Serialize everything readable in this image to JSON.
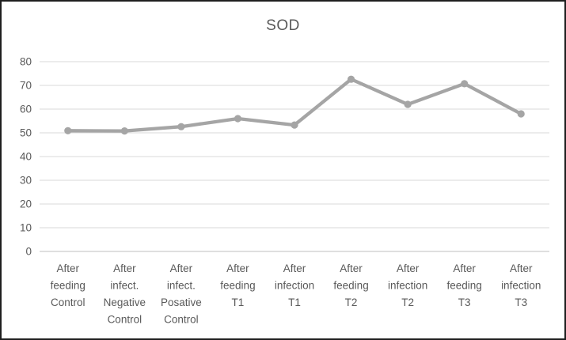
{
  "chart_data": {
    "type": "line",
    "title": "SOD",
    "categories": [
      "After feeding Control",
      "After infect. Negative Control",
      "After infect. Posative Control",
      "After feeding T1",
      "After infection T1",
      "After feeding T2",
      "After infection T2",
      "After feeding T3",
      "After infection T3"
    ],
    "category_lines": [
      [
        "After",
        "feeding",
        "Control"
      ],
      [
        "After",
        "infect.",
        "Negative",
        "Control"
      ],
      [
        "After",
        "infect.",
        "Posative",
        "Control"
      ],
      [
        "After",
        "feeding",
        "T1"
      ],
      [
        "After",
        "infection",
        "T1"
      ],
      [
        "After",
        "feeding",
        "T2"
      ],
      [
        "After",
        "infection",
        "T2"
      ],
      [
        "After",
        "feeding",
        "T3"
      ],
      [
        "After",
        "infection",
        "T3"
      ]
    ],
    "series": [
      {
        "name": "SOD",
        "values": [
          50.9,
          50.8,
          52.6,
          56.0,
          53.3,
          72.6,
          62.0,
          70.7,
          58.0
        ]
      }
    ],
    "xlabel": "",
    "ylabel": "",
    "ylim": [
      0,
      80
    ],
    "ytick_step": 10,
    "yticks": [
      0,
      10,
      20,
      30,
      40,
      50,
      60,
      70,
      80
    ],
    "grid": true,
    "legend_position": "none",
    "colors": {
      "series_line": "#a5a5a5",
      "marker": "#a5a5a5",
      "gridline": "#d9d9d9",
      "axis_line": "#bfbfbf",
      "tick_text": "#595959",
      "title_text": "#595959",
      "frame_border": "#1f1f1f",
      "background": "#ffffff"
    }
  }
}
